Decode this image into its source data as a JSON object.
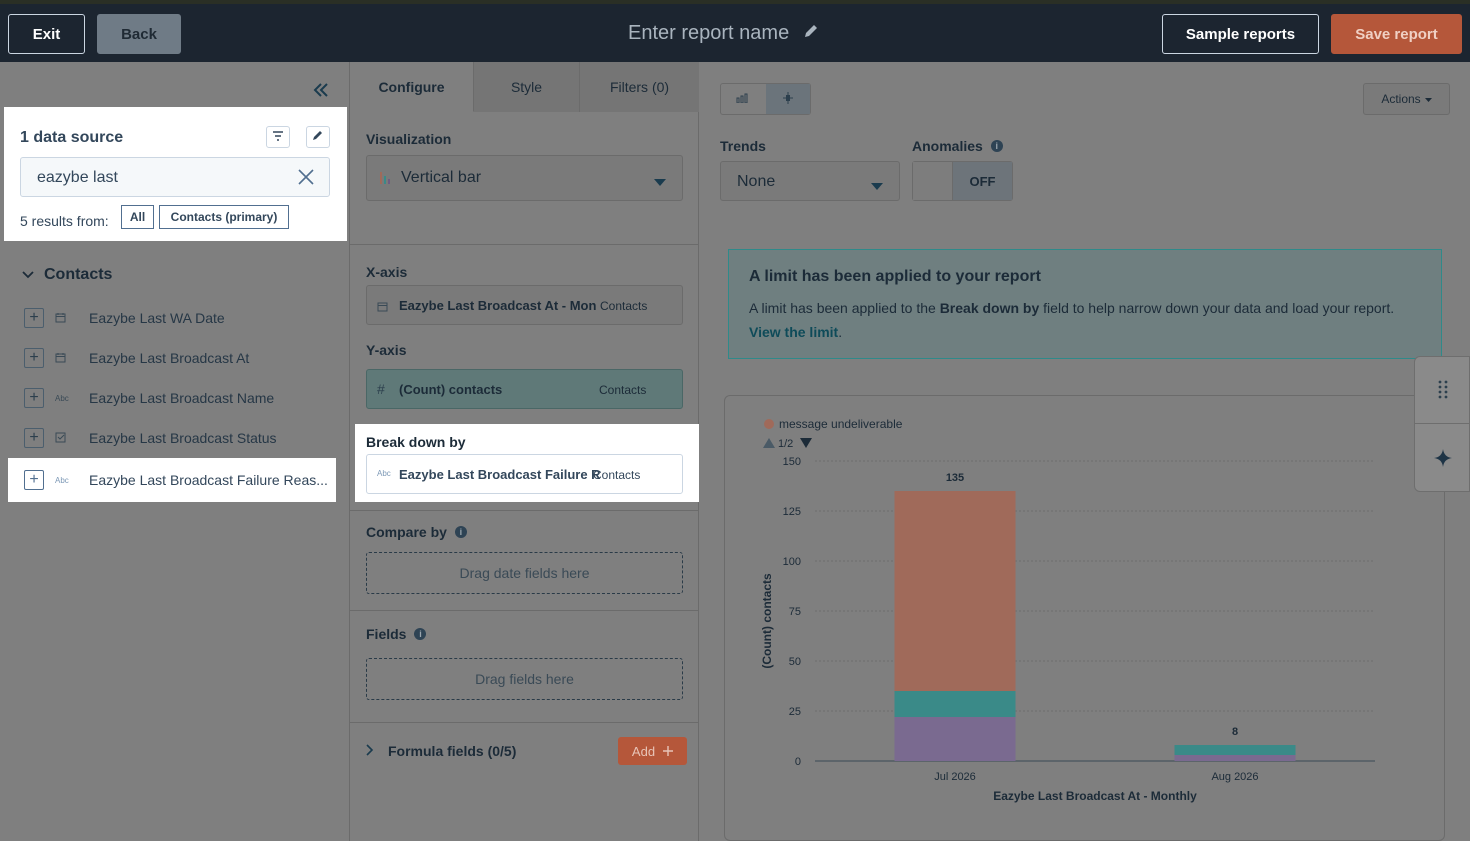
{
  "topbar": {
    "exit_label": "Exit",
    "back_label": "Back",
    "report_name_placeholder": "Enter report name",
    "sample_reports_label": "Sample reports",
    "save_report_label": "Save report"
  },
  "left": {
    "data_source_title": "1 data source",
    "search_value": "eazybe last",
    "results_text": "5 results from:",
    "filter_chips": [
      "All",
      "Contacts (primary)"
    ],
    "group_title": "Contacts",
    "fields": [
      {
        "type": "date",
        "name": "Eazybe Last WA Date"
      },
      {
        "type": "date",
        "name": "Eazybe Last Broadcast At"
      },
      {
        "type": "Abc",
        "name": "Eazybe Last Broadcast Name"
      },
      {
        "type": "enum",
        "name": "Eazybe Last Broadcast Status"
      },
      {
        "type": "Abc",
        "name": "Eazybe Last Broadcast Failure Reas..."
      }
    ]
  },
  "middle": {
    "tabs": [
      "Configure",
      "Style",
      "Filters (0)"
    ],
    "visualization_label": "Visualization",
    "visualization_value": "Vertical bar",
    "xaxis_label": "X-axis",
    "xaxis_field": "Eazybe Last Broadcast At - Mon",
    "xaxis_source": "Contacts",
    "yaxis_label": "Y-axis",
    "yaxis_field": "(Count) contacts",
    "yaxis_source": "Contacts",
    "breakdown_label": "Break down by",
    "breakdown_field": "Eazybe Last Broadcast Failure R",
    "breakdown_source": "Contacts",
    "compare_label": "Compare by",
    "compare_placeholder": "Drag date fields here",
    "fields_label": "Fields",
    "fields_placeholder": "Drag fields here",
    "formula_label": "Formula fields (0/5)",
    "add_label": "Add"
  },
  "right": {
    "actions_label": "Actions",
    "trends_label": "Trends",
    "trends_value": "None",
    "anomalies_label": "Anomalies",
    "anomalies_toggle": "OFF",
    "alert_title": "A limit has been applied to your report",
    "alert_text_1": "A limit has been applied to the ",
    "alert_text_bold": "Break down by",
    "alert_text_2": " field to help narrow down your data and load your report. ",
    "alert_link": "View the limit",
    "alert_end": "."
  },
  "colors": {
    "series_1": "#a06a5a",
    "series_2": "#3a8a88",
    "series_3": "#7a6a90",
    "accent_orange": "#b5573a"
  },
  "chart_data": {
    "type": "bar",
    "stacked": true,
    "legend": {
      "visible_entry": "message undeliverable",
      "page": "1/2",
      "placement": "top-left"
    },
    "categories": [
      "Jul 2026",
      "Aug 2026"
    ],
    "series": [
      {
        "name": "message undeliverable",
        "values": [
          100,
          0
        ]
      },
      {
        "values": [
          13,
          5
        ]
      },
      {
        "values": [
          22,
          3
        ]
      }
    ],
    "totals": [
      135,
      8
    ],
    "xlabel": "Eazybe Last Broadcast At - Monthly",
    "ylabel": "(Count) contacts",
    "ylim": [
      0,
      150
    ],
    "yticks": [
      0,
      25,
      50,
      75,
      100,
      125,
      150
    ],
    "grid": true
  }
}
